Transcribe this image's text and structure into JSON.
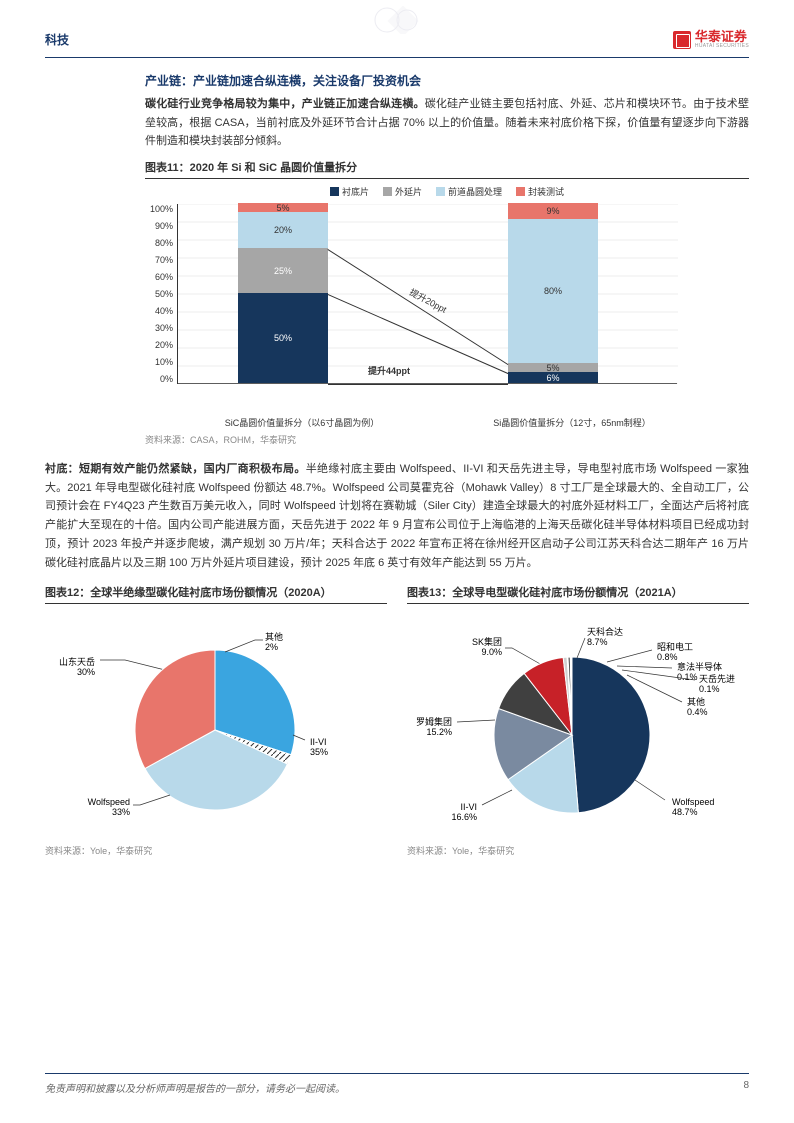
{
  "header": {
    "category": "科技",
    "brand": "华泰证券",
    "brand_en": "HUATAI SECURITIES"
  },
  "section1": {
    "title": "产业链：产业链加速合纵连横，关注设备厂投资机会",
    "para_bold": "碳化硅行业竞争格局较为集中，产业链正加速合纵连横。",
    "para_rest": "碳化硅产业链主要包括衬底、外延、芯片和模块环节。由于技术壁垒较高，根据 CASA，当前衬底及外延环节合计占据 70% 以上的价值量。随着未来衬底价格下探，价值量有望逐步向下游器件制造和模块封装部分倾斜。"
  },
  "fig11": {
    "title": "图表11：2020 年 Si 和 SiC 晶圆价值量拆分",
    "source": "资料来源：CASA，ROHM，华泰研究",
    "legend": [
      {
        "label": "衬底片",
        "color": "#16365c"
      },
      {
        "label": "外延片",
        "color": "#a6a6a6"
      },
      {
        "label": "前道晶圆处理",
        "color": "#b8d9ea"
      },
      {
        "label": "封装测试",
        "color": "#e8756b"
      }
    ],
    "yticks": [
      "100%",
      "90%",
      "80%",
      "70%",
      "60%",
      "50%",
      "40%",
      "30%",
      "20%",
      "10%",
      "0%"
    ],
    "bars": [
      {
        "x": "SiC晶圆价值量拆分（以6寸晶圆为例）",
        "segs": [
          {
            "v": 50,
            "label": "50%",
            "color": "#16365c"
          },
          {
            "v": 25,
            "label": "25%",
            "color": "#a6a6a6"
          },
          {
            "v": 20,
            "label": "20%",
            "color": "#b8d9ea",
            "txt": "#333"
          },
          {
            "v": 5,
            "label": "5%",
            "color": "#e8756b",
            "txt": "#333"
          }
        ]
      },
      {
        "x": "Si晶圆价值量拆分（12寸，65nm制程）",
        "segs": [
          {
            "v": 6,
            "label": "6%",
            "color": "#16365c"
          },
          {
            "v": 5,
            "label": "5%",
            "color": "#a6a6a6",
            "txt": "#333"
          },
          {
            "v": 80,
            "label": "80%",
            "color": "#b8d9ea",
            "txt": "#333"
          },
          {
            "v": 9,
            "label": "9%",
            "color": "#e8756b",
            "txt": "#333"
          }
        ]
      }
    ],
    "annot1": "提升44ppt",
    "annot2": "提升20ppt"
  },
  "section2": {
    "para_bold": "衬底：短期有效产能仍然紧缺，国内厂商积极布局。",
    "para_rest": "半绝缘衬底主要由 Wolfspeed、II-VI 和天岳先进主导，导电型衬底市场 Wolfspeed 一家独大。2021 年导电型碳化硅衬底 Wolfspeed 份额达 48.7%。Wolfspeed 公司莫霍克谷（Mohawk Valley）8 寸工厂是全球最大的、全自动工厂，公司预计会在 FY4Q23 产生数百万美元收入，同时 Wolfspeed 计划将在赛勒城（Siler City）建造全球最大的衬底外延材料工厂，全面达产后将衬底产能扩大至现在的十倍。国内公司产能进展方面，天岳先进于 2022 年 9 月宣布公司位于上海临港的上海天岳碳化硅半导体材料项目已经成功封顶，预计 2023 年投产并逐步爬坡，满产规划 30 万片/年；天科合达于 2022 年宣布正将在徐州经开区启动子公司江苏天科合达二期年产 16 万片碳化硅衬底晶片以及三期 100 万片外延片项目建设，预计 2025 年底 6 英寸有效年产能达到 55 万片。"
  },
  "fig12": {
    "title": "图表12：全球半绝缘型碳化硅衬底市场份额情况（2020A）",
    "source": "资料来源：Yole，华泰研究",
    "slices": [
      {
        "name": "山东天岳",
        "pct": "30%",
        "color": "#3aa5e0",
        "deg": 108
      },
      {
        "name": "其他",
        "pct": "2%",
        "color": "url(#hatch)",
        "deg": 7.2,
        "isHatch": true
      },
      {
        "name": "II-VI",
        "pct": "35%",
        "color": "#b8d9ea",
        "deg": 126
      },
      {
        "name": "Wolfspeed",
        "pct": "33%",
        "color": "#e8756b",
        "deg": 118.8
      }
    ]
  },
  "fig13": {
    "title": "图表13：全球导电型碳化硅衬底市场份额情况（2021A）",
    "source": "资料来源：Yole，华泰研究",
    "slices": [
      {
        "name": "Wolfspeed",
        "pct": "48.7%",
        "color": "#16365c"
      },
      {
        "name": "II-VI",
        "pct": "16.6%",
        "color": "#b8d9ea"
      },
      {
        "name": "罗姆集团",
        "pct": "15.2%",
        "color": "#7a8aa0"
      },
      {
        "name": "SK集团",
        "pct": "9.0%",
        "color": "#404040"
      },
      {
        "name": "天科合达",
        "pct": "8.7%",
        "color": "#c72128"
      },
      {
        "name": "昭和电工",
        "pct": "0.8%",
        "color": "#d0d0d0"
      },
      {
        "name": "意法半导体",
        "pct": "0.1%",
        "color": "#8b0000"
      },
      {
        "name": "天岳先进",
        "pct": "0.1%",
        "color": "#3aa5e0"
      },
      {
        "name": "其他",
        "pct": "0.4%",
        "color": "#1a1a1a"
      }
    ]
  },
  "footer": {
    "disclaimer": "免责声明和披露以及分析师声明是报告的一部分，请务必一起阅读。",
    "page": "8"
  }
}
